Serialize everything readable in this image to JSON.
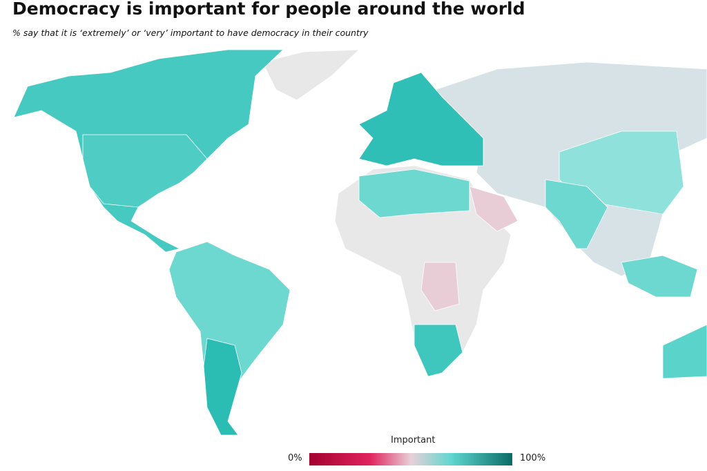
{
  "title": "Democracy is important for people around the world",
  "subtitle": "% say that it is ‘extremely’ or ‘very’ important to have democracy in their country",
  "legend": {
    "title": "Important",
    "min_label": "0%",
    "max_label": "100%"
  }
}
